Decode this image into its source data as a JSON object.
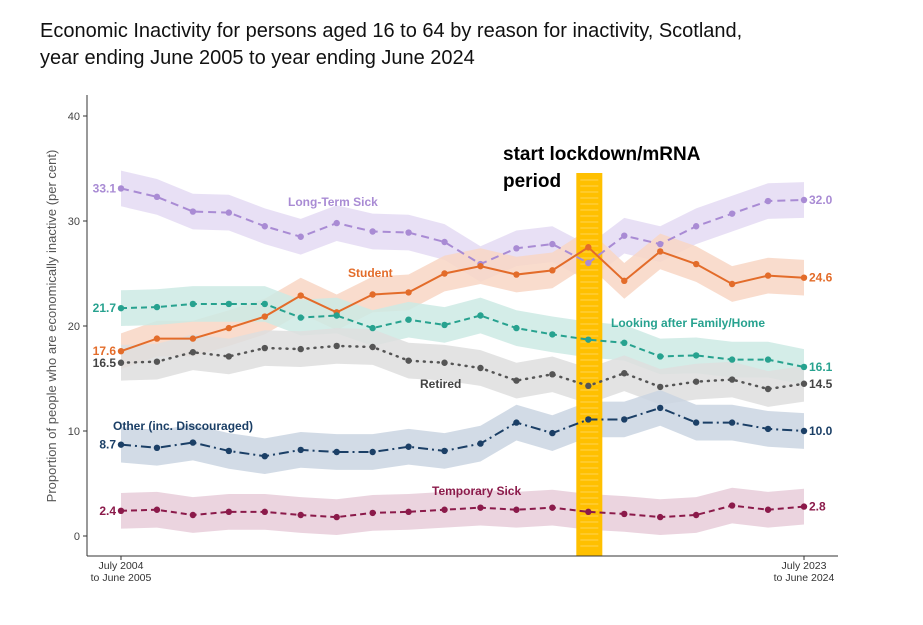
{
  "title_lines": [
    "Economic Inactivity for persons aged 16 to 64 by reason for inactivity, Scotland,",
    "year ending June 2005 to year ending June 2024"
  ],
  "chart_data": {
    "type": "line",
    "ylabel": "Proportion of people who are economically inactive (per cent)",
    "xlabel": "",
    "ylim": [
      0,
      40
    ],
    "yticks": [
      0,
      10,
      20,
      30,
      40
    ],
    "x_tick_labels": [
      {
        "index": 0,
        "lines": [
          "July 2004",
          "to June 2005"
        ]
      },
      {
        "index": 19,
        "lines": [
          "July 2023",
          "to June 2024"
        ]
      }
    ],
    "x_count": 20,
    "grid": false,
    "annotation": {
      "lines": [
        "start lockdown/mRNA",
        "period"
      ],
      "x_index": 13,
      "color": "#FFC000"
    },
    "series": [
      {
        "name": "Long-Term Sick",
        "color": "#A98BD4",
        "band": "#E4DAF3",
        "dash": "8,5",
        "values": [
          33.1,
          32.3,
          30.9,
          30.8,
          29.5,
          28.5,
          29.8,
          29.0,
          28.9,
          28.0,
          25.9,
          27.4,
          27.8,
          26.0,
          28.6,
          27.8,
          29.5,
          30.7,
          31.9,
          32.0
        ],
        "start_label": "33.1",
        "end_label": "32.0"
      },
      {
        "name": "Student",
        "color": "#E36C2A",
        "band": "#F8D6C4",
        "dash": "",
        "values": [
          17.6,
          18.8,
          18.8,
          19.8,
          20.9,
          22.9,
          21.3,
          23.0,
          23.2,
          25.0,
          25.7,
          24.9,
          25.3,
          27.5,
          24.3,
          27.1,
          25.9,
          24.0,
          24.8,
          24.6
        ],
        "start_label": "17.6",
        "end_label": "24.6"
      },
      {
        "name": "Looking after Family/Home",
        "color": "#27A28F",
        "band": "#CDEAE4",
        "dash": "6,4",
        "values": [
          21.7,
          21.8,
          22.1,
          22.1,
          22.1,
          20.8,
          21.0,
          19.8,
          20.6,
          20.1,
          21.0,
          19.8,
          19.2,
          18.7,
          18.4,
          17.1,
          17.2,
          16.8,
          16.8,
          16.1
        ],
        "start_label": "21.7",
        "end_label": "16.1"
      },
      {
        "name": "Retired",
        "color": "#555555",
        "band": "#DEDEDE",
        "dash": "1,6",
        "values": [
          16.5,
          16.6,
          17.5,
          17.1,
          17.9,
          17.8,
          18.1,
          18.0,
          16.7,
          16.5,
          16.0,
          14.8,
          15.4,
          14.3,
          15.5,
          14.2,
          14.7,
          14.9,
          14.0,
          14.5
        ],
        "start_label": "16.5",
        "end_label": "14.5"
      },
      {
        "name": "Other (inc. Discouraged)",
        "color": "#1B3F66",
        "band": "#CAD5E2",
        "dash": "10,4,2,4",
        "values": [
          8.7,
          8.4,
          8.9,
          8.1,
          7.6,
          8.2,
          8.0,
          8.0,
          8.5,
          8.1,
          8.8,
          10.8,
          9.8,
          11.1,
          11.1,
          12.2,
          10.8,
          10.8,
          10.2,
          10.0
        ],
        "start_label": "8.7",
        "end_label": "10.0"
      },
      {
        "name": "Temporary Sick",
        "color": "#8B1A4A",
        "band": "#E8CCD9",
        "dash": "6,4",
        "values": [
          2.4,
          2.5,
          2.0,
          2.3,
          2.3,
          2.0,
          1.8,
          2.2,
          2.3,
          2.5,
          2.7,
          2.5,
          2.7,
          2.3,
          2.1,
          1.8,
          2.0,
          2.9,
          2.5,
          2.8
        ],
        "start_label": "2.4",
        "end_label": "2.8"
      }
    ]
  }
}
